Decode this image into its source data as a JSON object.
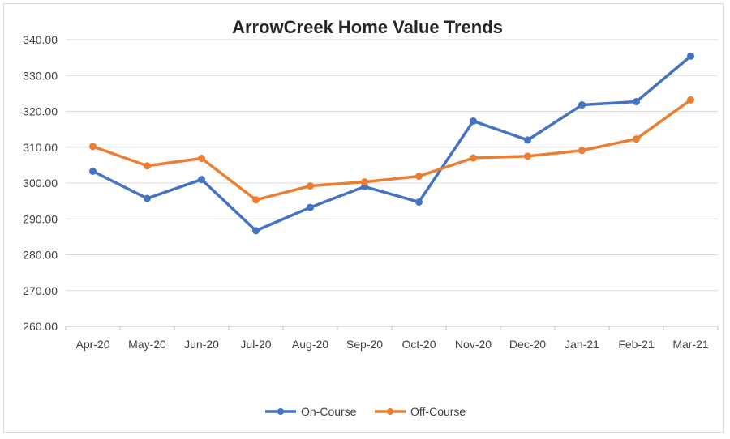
{
  "chart_data": {
    "type": "line",
    "title": "ArrowCreek Home Value Trends",
    "xlabel": "",
    "ylabel": "",
    "categories": [
      "Apr-20",
      "May-20",
      "Jun-20",
      "Jul-20",
      "Aug-20",
      "Sep-20",
      "Oct-20",
      "Nov-20",
      "Dec-20",
      "Jan-21",
      "Feb-21",
      "Mar-21"
    ],
    "ylim": [
      260,
      340
    ],
    "yticks": [
      "260.00",
      "270.00",
      "280.00",
      "290.00",
      "300.00",
      "310.00",
      "320.00",
      "330.00",
      "340.00"
    ],
    "grid": true,
    "legend_position": "bottom",
    "series": [
      {
        "name": "On-Course",
        "color": "#4472c4",
        "values": [
          303.3,
          295.7,
          301.0,
          286.7,
          293.2,
          299.0,
          294.7,
          317.3,
          312.0,
          321.8,
          322.7,
          335.4
        ]
      },
      {
        "name": "Off-Course",
        "color": "#ed7d31",
        "values": [
          310.2,
          304.8,
          306.9,
          295.3,
          299.2,
          300.3,
          301.9,
          307.0,
          307.5,
          309.1,
          312.3,
          323.2
        ]
      }
    ]
  }
}
